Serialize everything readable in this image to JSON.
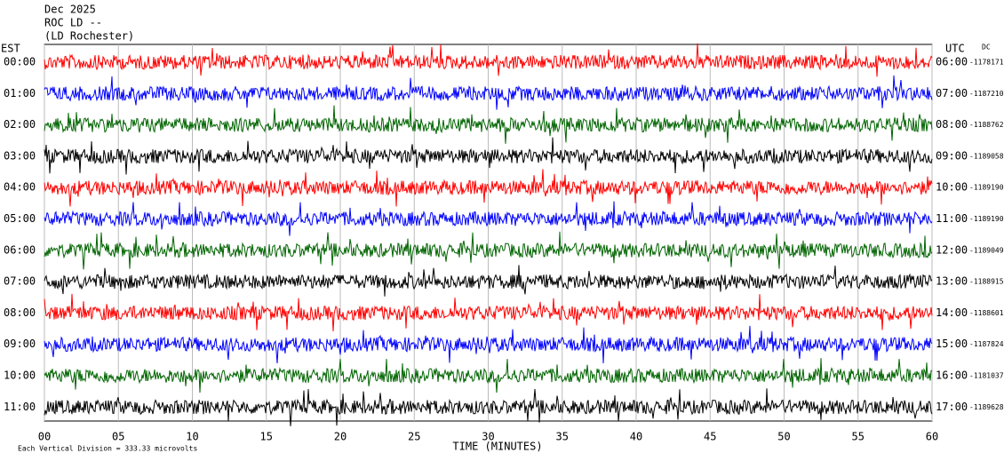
{
  "header": {
    "line1": "Dec 2025",
    "line2": "ROC LD --",
    "line3": "(LD Rochester)"
  },
  "left_axis_title": "EST",
  "right_axis_title": "UTC",
  "dc_title": "DC",
  "rows": [
    {
      "est": "00:00",
      "utc": "06:00",
      "dc": "-1178171",
      "color": "#ff0000"
    },
    {
      "est": "01:00",
      "utc": "07:00",
      "dc": "-1187210",
      "color": "#0000ff"
    },
    {
      "est": "02:00",
      "utc": "08:00",
      "dc": "-1188762",
      "color": "#006400"
    },
    {
      "est": "03:00",
      "utc": "09:00",
      "dc": "-1189058",
      "color": "#000000"
    },
    {
      "est": "04:00",
      "utc": "10:00",
      "dc": "-1189190",
      "color": "#ff0000"
    },
    {
      "est": "05:00",
      "utc": "11:00",
      "dc": "-1189190",
      "color": "#0000ff"
    },
    {
      "est": "06:00",
      "utc": "12:00",
      "dc": "-1189049",
      "color": "#006400"
    },
    {
      "est": "07:00",
      "utc": "13:00",
      "dc": "-1188915",
      "color": "#000000"
    },
    {
      "est": "08:00",
      "utc": "14:00",
      "dc": "-1188601",
      "color": "#ff0000"
    },
    {
      "est": "09:00",
      "utc": "15:00",
      "dc": "-1187824",
      "color": "#0000ff"
    },
    {
      "est": "10:00",
      "utc": "16:00",
      "dc": "-1181037",
      "color": "#006400"
    },
    {
      "est": "11:00",
      "utc": "17:00",
      "dc": "-1189628",
      "color": "#000000"
    }
  ],
  "x_axis": {
    "label": "TIME (MINUTES)",
    "ticks": [
      "00",
      "05",
      "10",
      "15",
      "20",
      "25",
      "30",
      "35",
      "40",
      "45",
      "50",
      "55",
      "60"
    ]
  },
  "footer": "Each Vertical Division = 333.33 microvolts"
}
